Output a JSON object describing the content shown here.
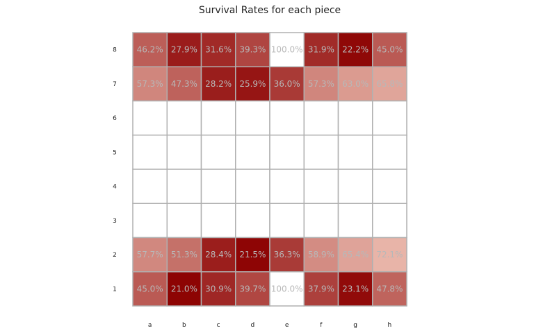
{
  "chart_data": {
    "type": "heatmap",
    "title": "Survival Rates for each piece",
    "x_categories": [
      "a",
      "b",
      "c",
      "d",
      "e",
      "f",
      "g",
      "h"
    ],
    "y_categories": [
      "8",
      "7",
      "6",
      "5",
      "4",
      "3",
      "2",
      "1"
    ],
    "values": [
      [
        46.2,
        27.9,
        31.6,
        39.3,
        100.0,
        31.9,
        22.2,
        45.0
      ],
      [
        57.3,
        47.3,
        28.2,
        25.9,
        36.0,
        57.3,
        63.0,
        65.8
      ],
      [
        null,
        null,
        null,
        null,
        null,
        null,
        null,
        null
      ],
      [
        null,
        null,
        null,
        null,
        null,
        null,
        null,
        null
      ],
      [
        null,
        null,
        null,
        null,
        null,
        null,
        null,
        null
      ],
      [
        null,
        null,
        null,
        null,
        null,
        null,
        null,
        null
      ],
      [
        57.7,
        51.3,
        28.4,
        21.5,
        36.3,
        58.9,
        65.4,
        72.1
      ],
      [
        45.0,
        21.0,
        30.9,
        39.7,
        100.0,
        37.9,
        23.1,
        47.8
      ]
    ],
    "value_suffix": "%",
    "colors": {
      "low": "#8b0000",
      "high": "#e8b4a8",
      "full": "#ffffff",
      "empty": "#ffffff",
      "grid": "#b0b0b0"
    }
  }
}
